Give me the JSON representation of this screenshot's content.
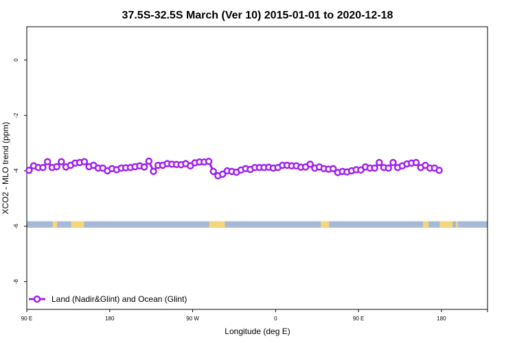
{
  "chart_data": {
    "type": "line",
    "title": "37.5S-32.5S March (Ver 10)   2015-01-01 to 2020-12-18",
    "xlabel": "Longitude (deg E)",
    "ylabel": "XCO2 - MLO trend (ppm)",
    "xlim": [
      90,
      590
    ],
    "ylim": [
      -9,
      1.2
    ],
    "x_ticks": [
      {
        "value": 90,
        "label": "90 E"
      },
      {
        "value": 180,
        "label": "180"
      },
      {
        "value": 270,
        "label": "90 W"
      },
      {
        "value": 360,
        "label": "0"
      },
      {
        "value": 450,
        "label": "90 E"
      },
      {
        "value": 540,
        "label": "180"
      }
    ],
    "y_ticks": [
      {
        "value": 0,
        "label": "0"
      },
      {
        "value": -2,
        "label": "-2"
      },
      {
        "value": -4,
        "label": "-4"
      },
      {
        "value": -6,
        "label": "-6"
      },
      {
        "value": -8,
        "label": "-8"
      }
    ],
    "grid": false,
    "legend_position": "bottom-left",
    "series": [
      {
        "name": "Land (Nadir&Glint) and Ocean (Glint)",
        "color": "#a020f0",
        "x": [
          92.5,
          97.5,
          102.5,
          107.5,
          112.5,
          117.5,
          122.5,
          127.5,
          132.5,
          137.5,
          142.5,
          147.5,
          152.5,
          157.5,
          162.5,
          167.5,
          172.5,
          177.5,
          182.5,
          187.5,
          192.5,
          197.5,
          202.5,
          207.5,
          212.5,
          217.5,
          222.5,
          227.5,
          232.5,
          237.5,
          242.5,
          247.5,
          252.5,
          257.5,
          262.5,
          267.5,
          272.5,
          277.5,
          282.5,
          287.5,
          292.5,
          297.5,
          302.5,
          307.5,
          312.5,
          317.5,
          322.5,
          327.5,
          332.5,
          337.5,
          342.5,
          347.5,
          352.5,
          357.5,
          362.5,
          367.5,
          372.5,
          377.5,
          382.5,
          387.5,
          392.5,
          397.5,
          402.5,
          407.5,
          412.5,
          417.5,
          422.5,
          427.5,
          432.5,
          437.5,
          442.5,
          447.5,
          452.5,
          457.5,
          462.5,
          467.5,
          472.5,
          477.5,
          482.5,
          487.5,
          492.5,
          497.5,
          502.5,
          507.5,
          512.5,
          517.5,
          522.5,
          527.5,
          532.5,
          537.5
        ],
        "y": [
          -3.98,
          -3.82,
          -3.88,
          -3.88,
          -3.67,
          -3.88,
          -3.85,
          -3.67,
          -3.86,
          -3.8,
          -3.72,
          -3.7,
          -3.67,
          -3.85,
          -3.8,
          -3.9,
          -3.9,
          -4.0,
          -3.92,
          -3.96,
          -3.9,
          -3.89,
          -3.88,
          -3.85,
          -3.82,
          -3.86,
          -3.65,
          -4.02,
          -3.8,
          -3.8,
          -3.74,
          -3.76,
          -3.77,
          -3.78,
          -3.74,
          -3.82,
          -3.71,
          -3.68,
          -3.68,
          -3.66,
          -4.02,
          -4.18,
          -4.12,
          -4.0,
          -4.02,
          -4.05,
          -3.97,
          -3.92,
          -3.95,
          -3.88,
          -3.88,
          -3.88,
          -3.87,
          -3.9,
          -3.88,
          -3.8,
          -3.8,
          -3.82,
          -3.82,
          -3.87,
          -3.86,
          -3.76,
          -3.9,
          -3.86,
          -3.92,
          -3.94,
          -3.92,
          -4.06,
          -4.02,
          -4.04,
          -4.0,
          -3.96,
          -3.97,
          -3.86,
          -3.9,
          -3.9,
          -3.7,
          -3.88,
          -3.9,
          -3.7,
          -3.88,
          -3.82,
          -3.75,
          -3.72,
          -3.7,
          -3.88,
          -3.8,
          -3.9,
          -3.9,
          -3.98
        ]
      }
    ],
    "map_band": {
      "y_top": -5.82,
      "y_bottom": -6.05,
      "ocean_color": "#a6b9d6",
      "land_color": "#f7d57a",
      "land_segments": [
        [
          118,
          123
        ],
        [
          138,
          152
        ],
        [
          288,
          305
        ],
        [
          409,
          418
        ],
        [
          520,
          526
        ],
        [
          538,
          552
        ],
        [
          556,
          558
        ]
      ]
    }
  }
}
